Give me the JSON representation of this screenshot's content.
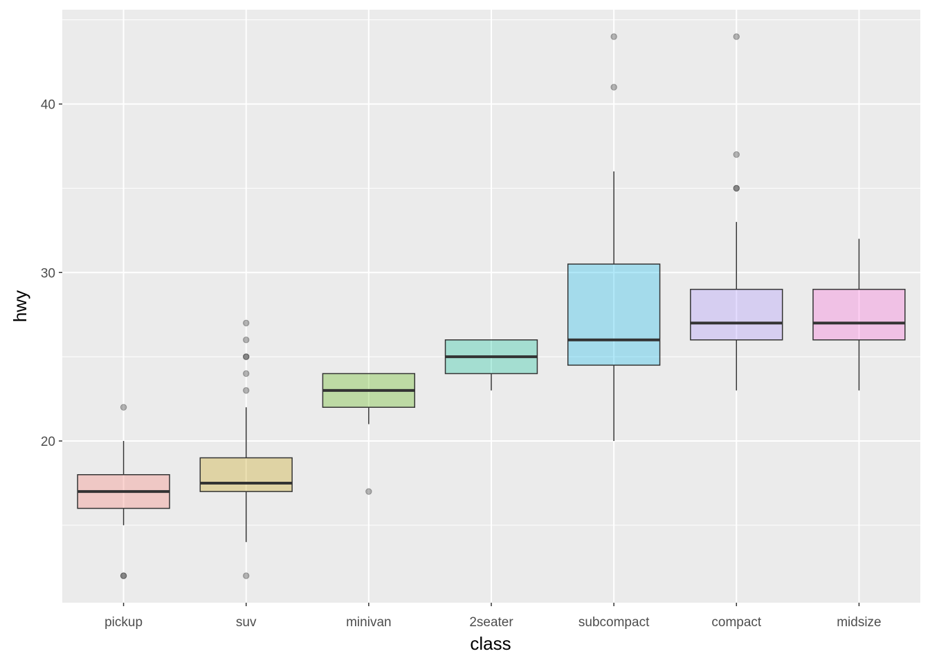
{
  "chart_data": {
    "type": "boxplot",
    "xlabel": "class",
    "ylabel": "hwy",
    "ylim": [
      10.4,
      45.6
    ],
    "yticks": [
      20,
      30,
      40
    ],
    "grid": true,
    "categories": [
      "pickup",
      "suv",
      "minivan",
      "2seater",
      "subcompact",
      "compact",
      "midsize"
    ],
    "colors": [
      "#F8766D",
      "#C49A00",
      "#53B400",
      "#00C094",
      "#00B6EB",
      "#A58AFF",
      "#FB61D7"
    ],
    "fill_alpha": 0.3,
    "boxes": [
      {
        "lower": 15,
        "q1": 16,
        "median": 17,
        "q3": 18,
        "upper": 20,
        "outliers": [
          12,
          12,
          22
        ]
      },
      {
        "lower": 14,
        "q1": 17,
        "median": 17.5,
        "q3": 19,
        "upper": 22,
        "outliers": [
          12,
          23,
          24,
          25,
          25,
          26,
          27
        ]
      },
      {
        "lower": 21,
        "q1": 22,
        "median": 23,
        "q3": 24,
        "upper": 24,
        "outliers": [
          17
        ]
      },
      {
        "lower": 23,
        "q1": 24,
        "median": 25,
        "q3": 26,
        "upper": 26,
        "outliers": []
      },
      {
        "lower": 20,
        "q1": 24.5,
        "median": 26,
        "q3": 30.5,
        "upper": 36,
        "outliers": [
          41,
          44
        ]
      },
      {
        "lower": 23,
        "q1": 26,
        "median": 27,
        "q3": 29,
        "upper": 33,
        "outliers": [
          35,
          35,
          37,
          44
        ]
      },
      {
        "lower": 23,
        "q1": 26,
        "median": 27,
        "q3": 29,
        "upper": 32,
        "outliers": []
      }
    ]
  }
}
